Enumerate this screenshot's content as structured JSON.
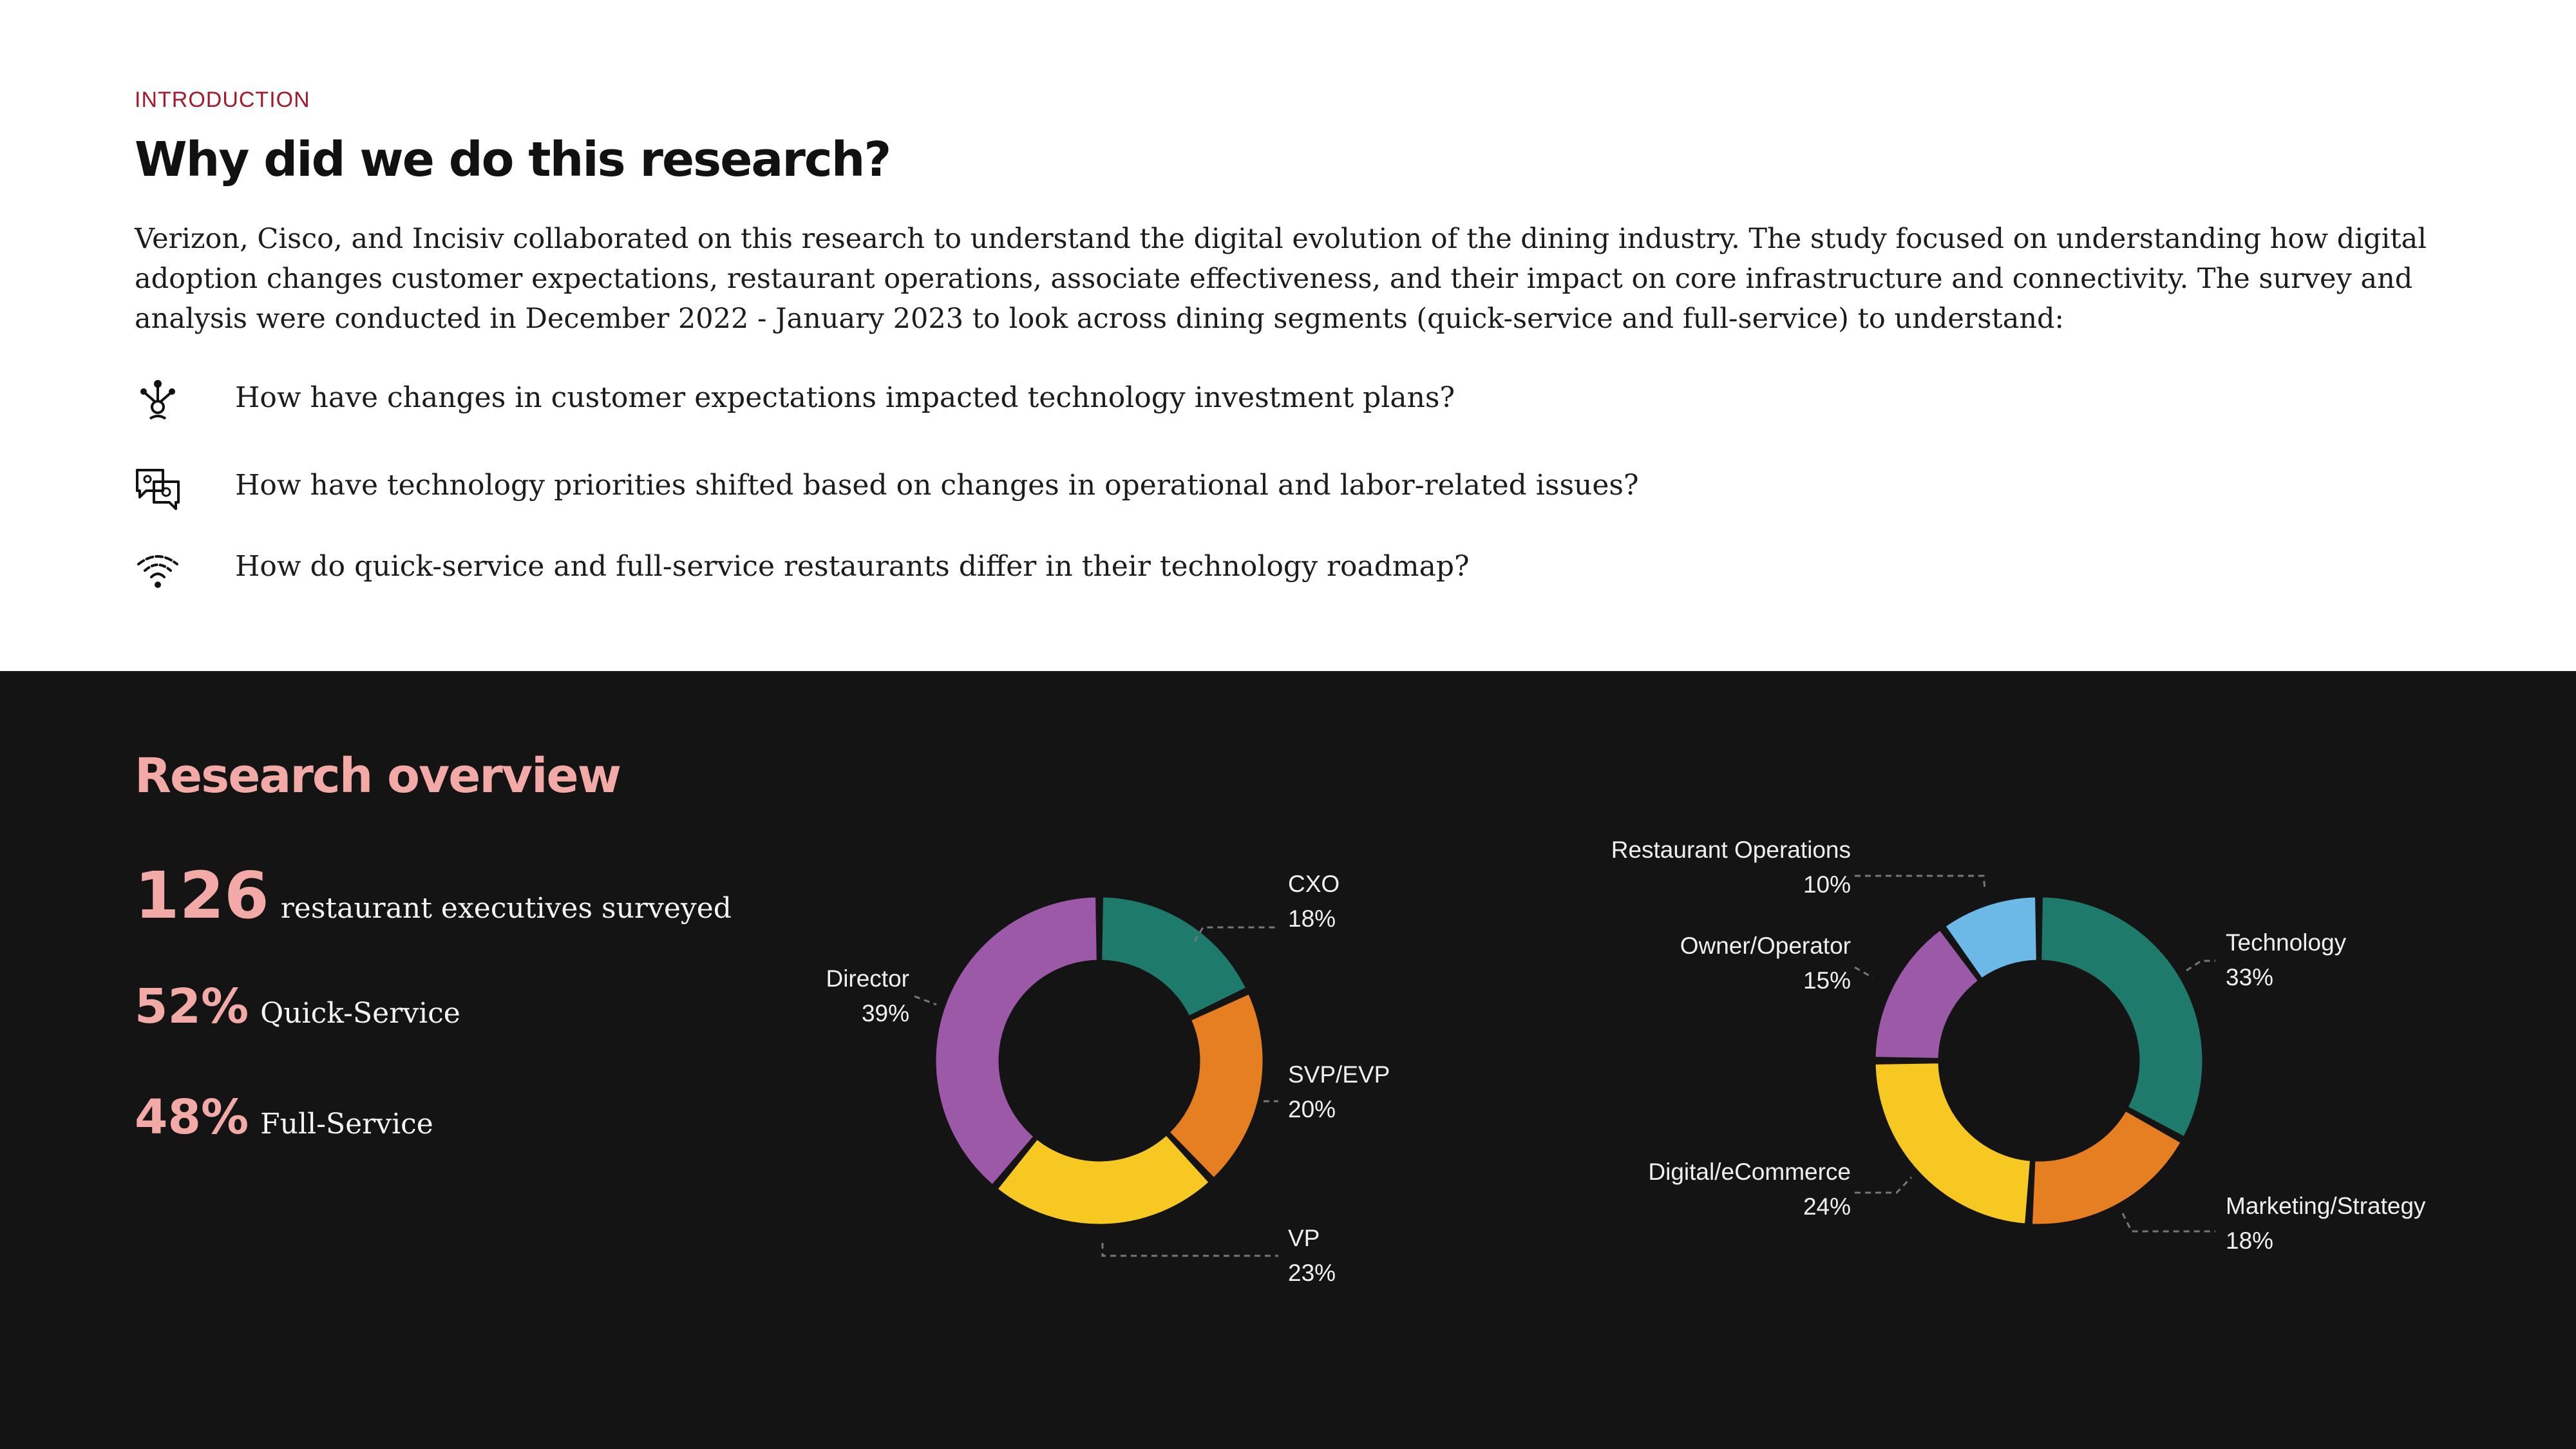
{
  "intro": {
    "eyebrow": "INTRODUCTION",
    "title": "Why did we do this research?",
    "body": "Verizon, Cisco, and Incisiv collaborated on this research to understand the digital evolution of the dining industry. The study focused on understanding how digital adoption changes customer expectations, restaurant operations, associate effectiveness, and their impact on core infrastructure and connectivity. The survey and analysis were conducted in December 2022 - January 2023 to look across dining segments (quick-service and full-service) to understand:",
    "questions": [
      {
        "icon": "network-node-icon",
        "text": "How have changes in customer expectations impacted technology investment plans?"
      },
      {
        "icon": "chat-bubbles-icon",
        "text": "How have technology priorities shifted based on changes in operational and labor-related issues?"
      },
      {
        "icon": "wifi-signal-icon",
        "text": "How do quick-service and full-service restaurants differ in their technology roadmap?"
      }
    ]
  },
  "overview": {
    "title": "Research overview",
    "stats": [
      {
        "value": "126",
        "label": "restaurant executives surveyed"
      },
      {
        "value": "52%",
        "label": "Quick-Service"
      },
      {
        "value": "48%",
        "label": "Full-Service"
      }
    ]
  },
  "colors": {
    "teal": "#1e7b6b",
    "orange": "#e67e22",
    "yellow": "#f8c822",
    "purple": "#9b59a7",
    "blue": "#6cb8e6",
    "accent_pink": "#f3a9a5",
    "eyebrow_red": "#a31a2a",
    "dark_bg": "#141414"
  },
  "chart_data": [
    {
      "type": "pie",
      "variant": "donut",
      "categories": [
        "CXO",
        "SVP/EVP",
        "VP",
        "Director"
      ],
      "values": [
        18,
        20,
        23,
        39
      ],
      "value_labels": [
        "18%",
        "20%",
        "23%",
        "39%"
      ],
      "colors": [
        "#1e7b6b",
        "#e67e22",
        "#f8c822",
        "#9b59a7"
      ]
    },
    {
      "type": "pie",
      "variant": "donut",
      "categories": [
        "Technology",
        "Marketing/Strategy",
        "Digital/eCommerce",
        "Owner/Operator",
        "Restaurant Operations"
      ],
      "values": [
        33,
        18,
        24,
        15,
        10
      ],
      "value_labels": [
        "33%",
        "18%",
        "24%",
        "15%",
        "10%"
      ],
      "colors": [
        "#1e7b6b",
        "#e67e22",
        "#f8c822",
        "#9b59a7",
        "#6cb8e6"
      ]
    }
  ]
}
